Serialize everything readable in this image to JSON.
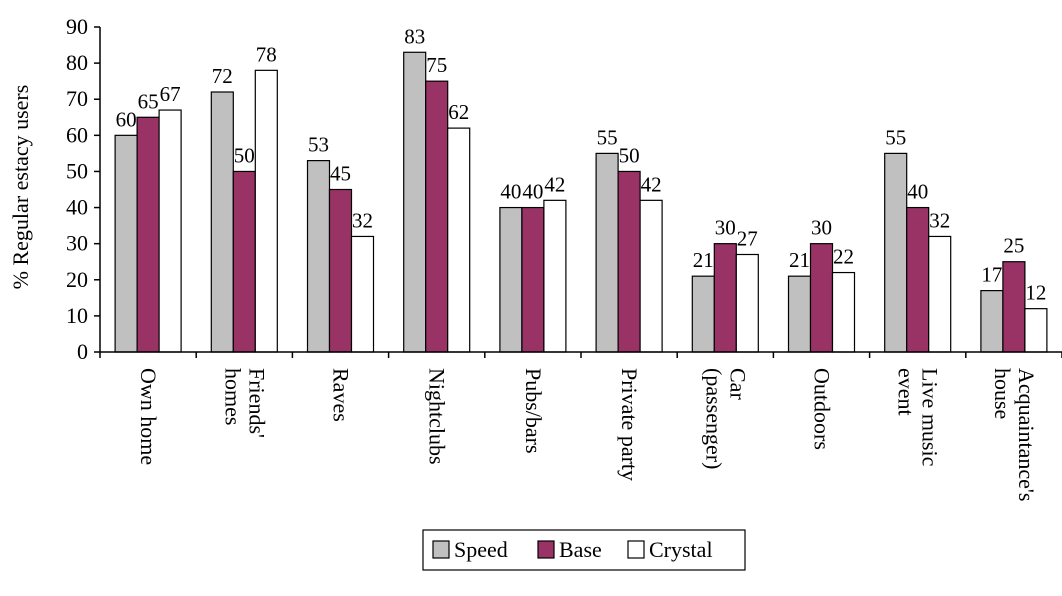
{
  "chart_data": {
    "type": "bar",
    "ylabel": "% Regular estacy users",
    "xlabel": "",
    "title": "",
    "ylim": [
      0,
      90
    ],
    "yticks": [
      0,
      10,
      20,
      30,
      40,
      50,
      60,
      70,
      80,
      90
    ],
    "grid": false,
    "legend_position": "bottom",
    "categories": [
      [
        "Own home"
      ],
      [
        "Friends'",
        "homes"
      ],
      [
        "Raves"
      ],
      [
        "Nightclubs"
      ],
      [
        "Pubs/bars"
      ],
      [
        "Private party"
      ],
      [
        "Car",
        "(passenger)"
      ],
      [
        "Outdoors"
      ],
      [
        "Live music",
        "event"
      ],
      [
        "Acquaintance's",
        "house"
      ]
    ],
    "series": [
      {
        "name": "Speed",
        "color": "#c0c0c0",
        "values": [
          60,
          72,
          53,
          83,
          40,
          55,
          21,
          21,
          55,
          17
        ]
      },
      {
        "name": "Base",
        "color": "#993366",
        "values": [
          65,
          50,
          45,
          75,
          40,
          50,
          30,
          30,
          40,
          25
        ]
      },
      {
        "name": "Crystal",
        "color": "#ffffff",
        "values": [
          67,
          78,
          32,
          62,
          42,
          42,
          27,
          22,
          32,
          12
        ]
      }
    ]
  }
}
